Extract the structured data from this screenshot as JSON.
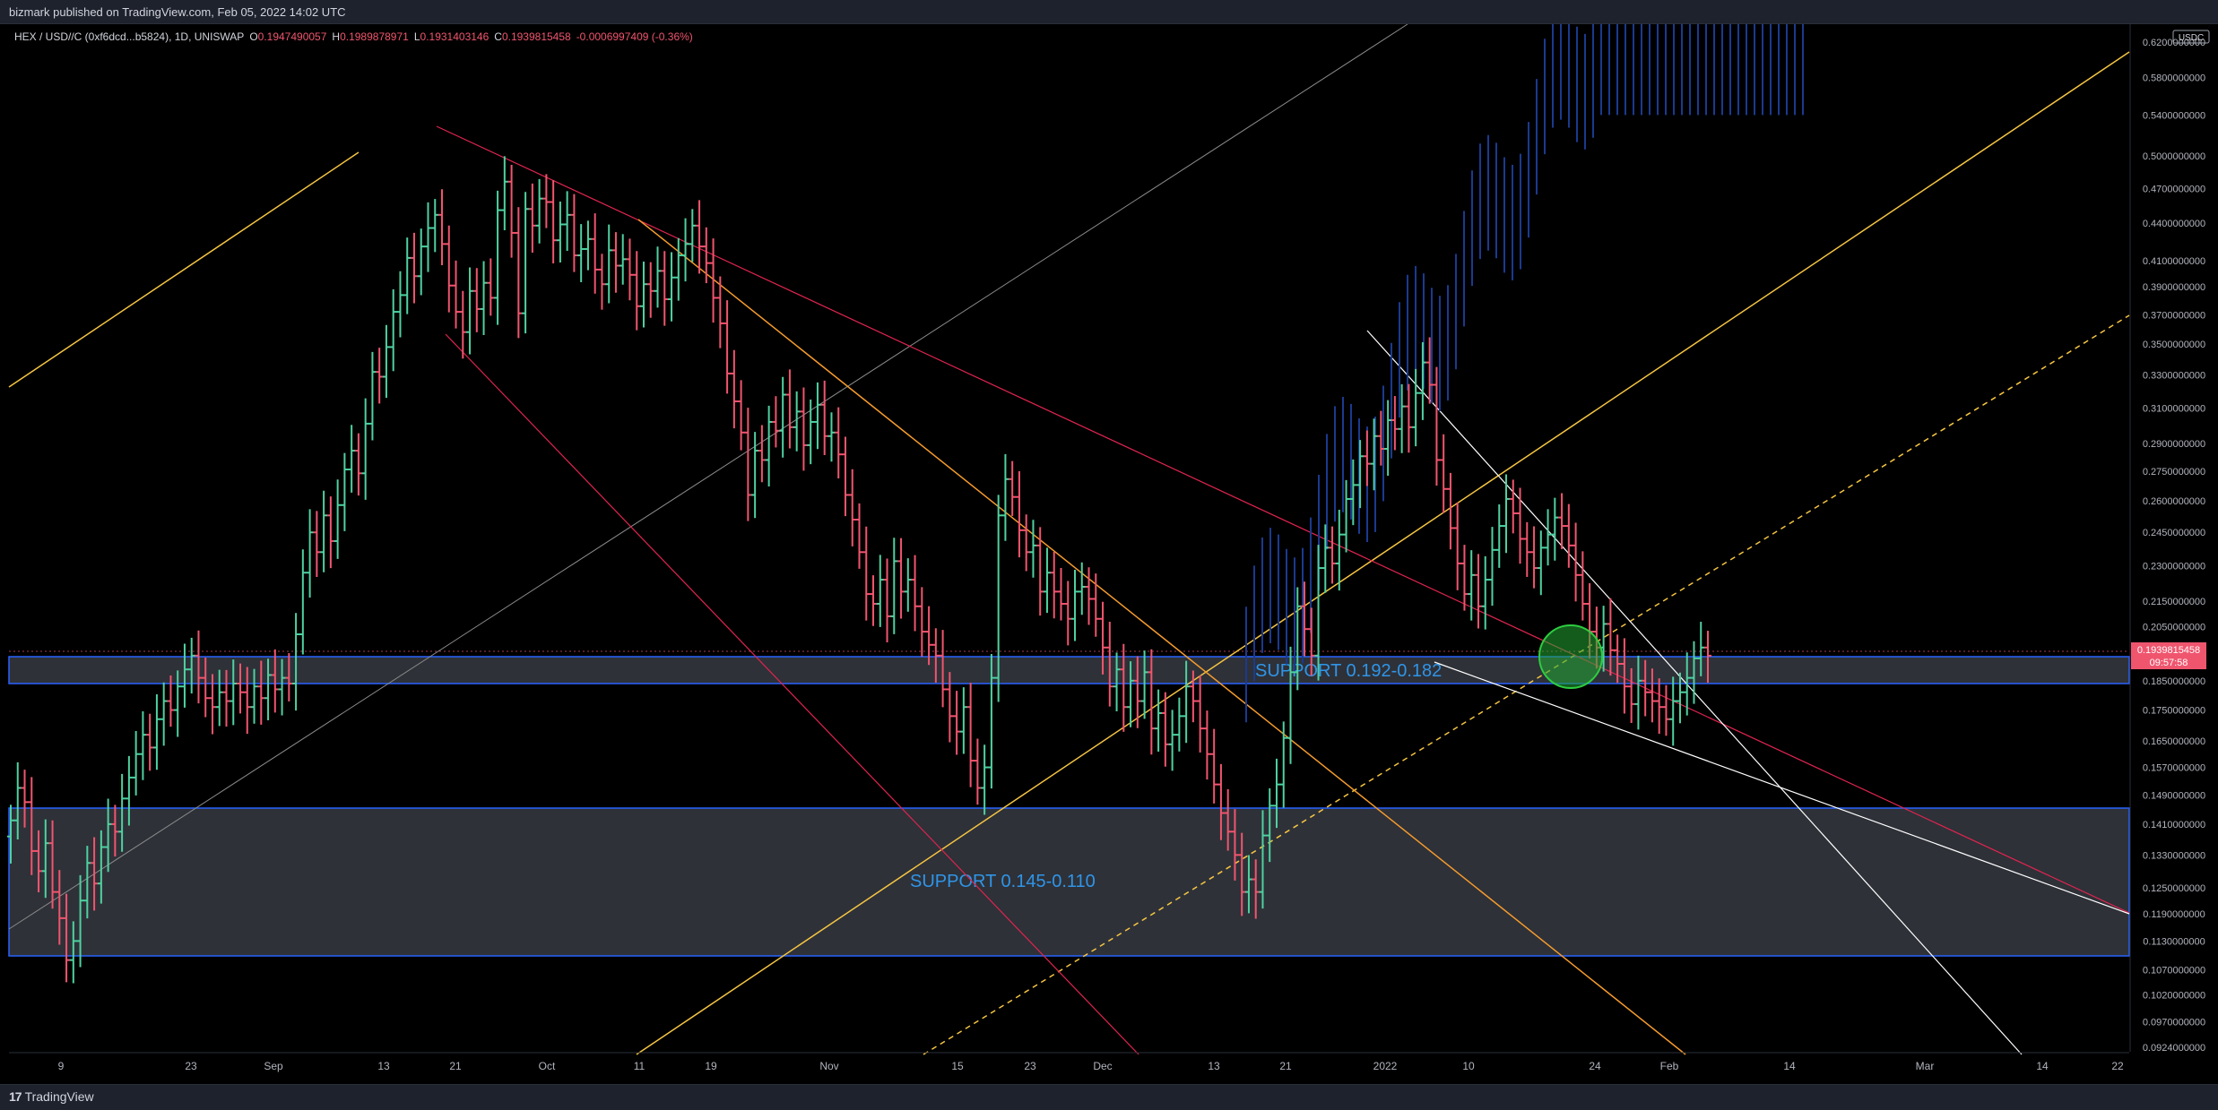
{
  "header": {
    "published_by": "bizmark published on TradingView.com, Feb 05, 2022 14:02 UTC"
  },
  "legend": {
    "symbol": "HEX / USD//C (0xf6dcd...b5824), 1D, UNISWAP",
    "o_label": "O",
    "o_value": "0.1947490057",
    "h_label": "H",
    "h_value": "0.1989878971",
    "l_label": "L",
    "l_value": "0.1931403146",
    "c_label": "C",
    "c_value": "0.1939815458",
    "change": "-0.0006997409 (-0.36%)"
  },
  "price_axis": {
    "currency_badge": "USDC",
    "labels": [
      "0.6200000000",
      "0.5800000000",
      "0.5400000000",
      "0.5000000000",
      "0.4700000000",
      "0.4400000000",
      "0.4100000000",
      "0.3900000000",
      "0.3700000000",
      "0.3500000000",
      "0.3300000000",
      "0.3100000000",
      "0.2900000000",
      "0.2750000000",
      "0.2600000000",
      "0.2450000000",
      "0.2300000000",
      "0.2150000000",
      "0.2050000000",
      "0.1950000000",
      "0.1850000000",
      "0.1750000000",
      "0.1650000000",
      "0.1570000000",
      "0.1490000000",
      "0.1410000000",
      "0.1330000000",
      "0.1250000000",
      "0.1190000000",
      "0.1130000000",
      "0.1070000000",
      "0.1020000000",
      "0.0970000000",
      "0.0924000000"
    ],
    "current_price": "0.1939815458",
    "countdown": "09:57:58"
  },
  "time_axis": {
    "labels": [
      "9",
      "23",
      "Sep",
      "13",
      "21",
      "Oct",
      "11",
      "19",
      "Nov",
      "15",
      "23",
      "Dec",
      "13",
      "21",
      "2022",
      "10",
      "24",
      "Feb",
      "14",
      "Mar",
      "14",
      "22"
    ]
  },
  "zones": {
    "upper_label": "SUPPORT 0.192-0.182",
    "lower_label": "SUPPORT 0.145-0.110"
  },
  "colors": {
    "up": "#4fd1a0",
    "down": "#f0556e",
    "zone_border": "#2962ff",
    "zone_label": "#2f95e8",
    "channel": "#f5c542",
    "wedge": "#ffffff",
    "red_line": "#e0244f",
    "orange_line": "#f59b2d",
    "ghost": "#1b3a8f"
  },
  "footer": {
    "brand": "TradingView"
  },
  "chart_data": {
    "type": "candlestick",
    "title": "HEX / USD//C (0xf6dcd...b5824), 1D, UNISWAP",
    "y_scale": "log",
    "ylim": [
      0.0924,
      0.62
    ],
    "support_zones": [
      [
        0.182,
        0.192
      ],
      [
        0.11,
        0.145
      ]
    ],
    "last_price": 0.1939815458,
    "closes": [
      0.142,
      0.151,
      0.147,
      0.134,
      0.129,
      0.136,
      0.124,
      0.118,
      0.109,
      0.113,
      0.122,
      0.131,
      0.126,
      0.135,
      0.141,
      0.139,
      0.148,
      0.154,
      0.161,
      0.167,
      0.163,
      0.172,
      0.178,
      0.175,
      0.183,
      0.189,
      0.194,
      0.186,
      0.179,
      0.176,
      0.181,
      0.178,
      0.184,
      0.181,
      0.176,
      0.183,
      0.179,
      0.187,
      0.182,
      0.186,
      0.184,
      0.202,
      0.227,
      0.245,
      0.236,
      0.253,
      0.241,
      0.258,
      0.276,
      0.286,
      0.274,
      0.301,
      0.332,
      0.329,
      0.348,
      0.372,
      0.384,
      0.412,
      0.398,
      0.421,
      0.436,
      0.447,
      0.423,
      0.391,
      0.372,
      0.358,
      0.387,
      0.374,
      0.393,
      0.382,
      0.451,
      0.476,
      0.432,
      0.371,
      0.452,
      0.438,
      0.461,
      0.458,
      0.426,
      0.439,
      0.447,
      0.414,
      0.419,
      0.427,
      0.403,
      0.392,
      0.418,
      0.406,
      0.411,
      0.399,
      0.376,
      0.392,
      0.387,
      0.402,
      0.381,
      0.397,
      0.414,
      0.423,
      0.438,
      0.421,
      0.408,
      0.382,
      0.364,
      0.331,
      0.314,
      0.296,
      0.263,
      0.286,
      0.281,
      0.302,
      0.297,
      0.318,
      0.299,
      0.308,
      0.289,
      0.302,
      0.312,
      0.294,
      0.296,
      0.284,
      0.263,
      0.251,
      0.236,
      0.218,
      0.214,
      0.224,
      0.209,
      0.232,
      0.219,
      0.224,
      0.213,
      0.203,
      0.198,
      0.194,
      0.182,
      0.173,
      0.168,
      0.176,
      0.159,
      0.151,
      0.157,
      0.186,
      0.253,
      0.271,
      0.262,
      0.246,
      0.236,
      0.239,
      0.219,
      0.227,
      0.219,
      0.214,
      0.208,
      0.219,
      0.221,
      0.216,
      0.208,
      0.197,
      0.183,
      0.189,
      0.176,
      0.185,
      0.178,
      0.188,
      0.169,
      0.174,
      0.164,
      0.167,
      0.173,
      0.183,
      0.178,
      0.169,
      0.161,
      0.152,
      0.144,
      0.139,
      0.133,
      0.124,
      0.127,
      0.124,
      0.138,
      0.146,
      0.152,
      0.166,
      0.188,
      0.213,
      0.204,
      0.194,
      0.229,
      0.238,
      0.231,
      0.244,
      0.261,
      0.268,
      0.283,
      0.279,
      0.294,
      0.287,
      0.303,
      0.298,
      0.311,
      0.299,
      0.319,
      0.338,
      0.324,
      0.281,
      0.266,
      0.247,
      0.231,
      0.218,
      0.226,
      0.213,
      0.224,
      0.237,
      0.248,
      0.261,
      0.254,
      0.242,
      0.236,
      0.229,
      0.238,
      0.244,
      0.252,
      0.248,
      0.239,
      0.226,
      0.214,
      0.203,
      0.197,
      0.206,
      0.196,
      0.191,
      0.183,
      0.177,
      0.185,
      0.181,
      0.178,
      0.176,
      0.172,
      0.178,
      0.181,
      0.186,
      0.193,
      0.197,
      0.1939815458
    ]
  }
}
